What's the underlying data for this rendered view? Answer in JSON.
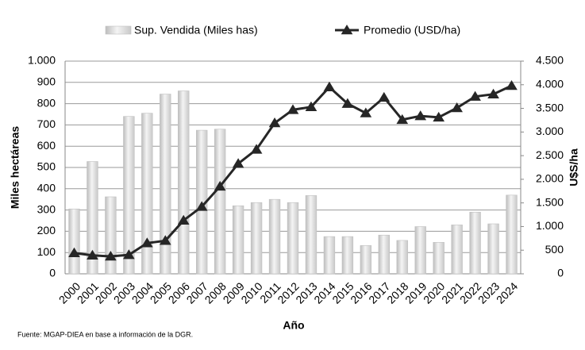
{
  "chart_data": {
    "type": "bar-line",
    "categories": [
      "2000",
      "2001",
      "2002",
      "2003",
      "2004",
      "2005",
      "2006",
      "2007",
      "2008",
      "2009",
      "2010",
      "2011",
      "2012",
      "2013",
      "2014",
      "2015",
      "2016",
      "2017",
      "2018",
      "2019",
      "2020",
      "2021",
      "2022",
      "2023",
      "2024"
    ],
    "series": [
      {
        "name": "Sup. Vendida (Miles has)",
        "type": "bar",
        "color": "#d9d9d9",
        "values": [
          305,
          528,
          362,
          740,
          755,
          845,
          860,
          675,
          680,
          320,
          335,
          350,
          335,
          368,
          175,
          175,
          133,
          182,
          157,
          222,
          148,
          230,
          290,
          235,
          370
        ]
      },
      {
        "name": "Promedio (USD/ha)",
        "type": "line",
        "axis": "y2",
        "color": "#262626",
        "values": [
          440,
          390,
          370,
          400,
          650,
          700,
          1130,
          1420,
          1850,
          2330,
          2630,
          3190,
          3470,
          3530,
          3950,
          3600,
          3400,
          3730,
          3260,
          3340,
          3310,
          3510,
          3750,
          3800,
          3980
        ]
      }
    ],
    "ylabel": "Miles hectáreas",
    "y2label": "U$S/ha",
    "xlabel": "Año",
    "source": "Fuente: MGAP-DIEA en base a información de la DGR.",
    "ylim": [
      0,
      1000
    ],
    "yticks": [
      0,
      100,
      200,
      300,
      400,
      500,
      600,
      700,
      800,
      900,
      {
        "value": 1000,
        "label": "1.000"
      }
    ],
    "y2lim": [
      0,
      4500
    ],
    "y2ticks": [
      0,
      500,
      {
        "value": 1000,
        "label": "1.000"
      },
      {
        "value": 1500,
        "label": "1.500"
      },
      {
        "value": 2000,
        "label": "2.000"
      },
      {
        "value": 2500,
        "label": "2.500"
      },
      {
        "value": 3000,
        "label": "3.000"
      },
      {
        "value": 3500,
        "label": "3.500"
      },
      {
        "value": 4000,
        "label": "4.000"
      },
      {
        "value": 4500,
        "label": "4.500"
      }
    ],
    "grid": true
  }
}
